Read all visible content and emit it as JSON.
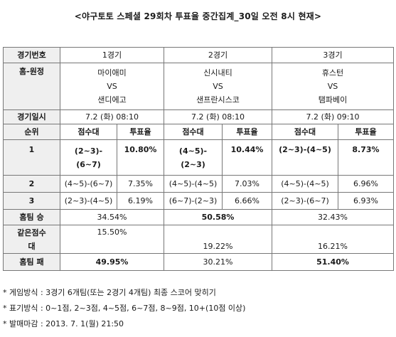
{
  "title": "<야구토토 스페셜 29회차 투표율 중간집계_30일 오전 8시 현재>",
  "header": {
    "game_no_label": "경기번호",
    "games": [
      "1경기",
      "2경기",
      "3경기"
    ]
  },
  "teams": {
    "label": "홈-원정",
    "games": [
      {
        "home": "마이애미",
        "vs": "VS",
        "away": "샌디에고"
      },
      {
        "home": "신시내티",
        "vs": "VS",
        "away": "샌프란시스코"
      },
      {
        "home": "휴스턴",
        "vs": "VS",
        "away": "탬파베이"
      }
    ]
  },
  "schedule": {
    "label": "경기일시",
    "games": [
      "7.2 (화) 08:10",
      "7.2 (화) 08:10",
      "7.2 (화) 09:10"
    ]
  },
  "rank_header": {
    "rank_label": "순위",
    "score_label": "점수대",
    "vote_label": "투표율"
  },
  "ranks": [
    {
      "rank": "1",
      "g1_score_a": "(2~3)-",
      "g1_score_b": "(6~7)",
      "g1_vote": "10.80%",
      "g2_score_a": "(4~5)-",
      "g2_score_b": "(2~3)",
      "g2_vote": "10.44%",
      "g3_score": "(2~3)-(4~5)",
      "g3_vote": "8.73%"
    },
    {
      "rank": "2",
      "g1_score": "(4~5)-(6~7)",
      "g1_vote": "7.35%",
      "g2_score": "(4~5)-(4~5)",
      "g2_vote": "7.03%",
      "g3_score": "(4~5)-(4~5)",
      "g3_vote": "6.96%"
    },
    {
      "rank": "3",
      "g1_score": "(2~3)-(4~5)",
      "g1_vote": "6.19%",
      "g2_score": "(6~7)-(2~3)",
      "g2_vote": "6.66%",
      "g3_score": "(2~3)-(6~7)",
      "g3_vote": "6.93%"
    }
  ],
  "home_win": {
    "label": "홈팀 승",
    "values": [
      "34.54%",
      "50.58%",
      "32.43%"
    ]
  },
  "draw": {
    "label_a": "같은점수",
    "label_b": "대",
    "values": [
      "15.50%",
      "19.22%",
      "16.21%"
    ]
  },
  "home_loss": {
    "label": "홈팀 패",
    "values": [
      "49.95%",
      "30.21%",
      "51.40%"
    ]
  },
  "notes": [
    "* 게임방식 : 3경기 6개팀(또는 2경기 4개팀) 최종 스코어 맞히기",
    "* 표기방식 : 0~1점, 2~3점, 4~5점, 6~7점, 8~9점, 10+(10점 이상)",
    "* 발매마감 : 2013. 7. 1(월) 21:50"
  ]
}
